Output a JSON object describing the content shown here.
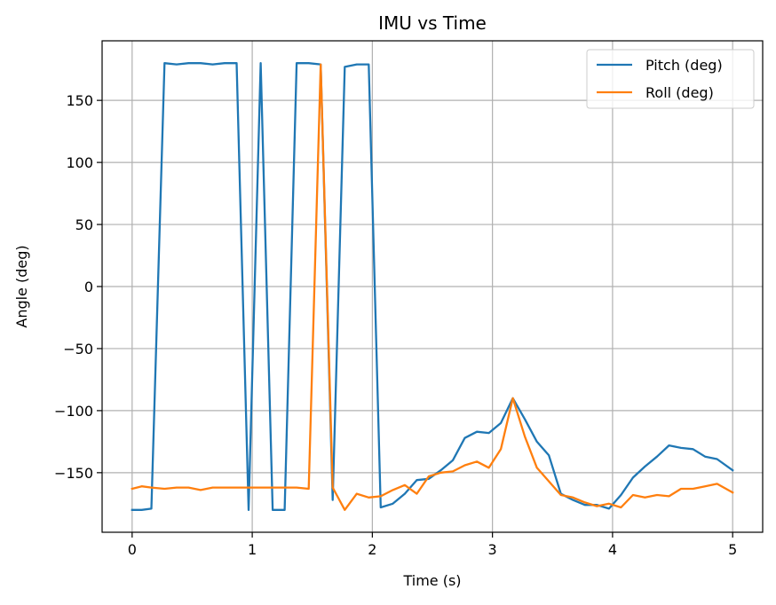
{
  "chart_data": {
    "type": "line",
    "title": "IMU vs Time",
    "xlabel": "Time (s)",
    "ylabel": "Angle (deg)",
    "xlim": [
      -0.25,
      5.25
    ],
    "ylim": [
      -198,
      198
    ],
    "xticks": [
      0,
      1,
      2,
      3,
      4,
      5
    ],
    "xtick_labels": [
      "0",
      "1",
      "2",
      "3",
      "4",
      "5"
    ],
    "yticks": [
      -150,
      -100,
      -50,
      0,
      50,
      100,
      150
    ],
    "ytick_labels": [
      "−150",
      "−100",
      "−50",
      "0",
      "50",
      "100",
      "150"
    ],
    "grid": true,
    "legend_position": "top-right",
    "series": [
      {
        "name": "Pitch (deg)",
        "color": "#1f77b4",
        "x": [
          0.0,
          0.08,
          0.16,
          0.27,
          0.37,
          0.47,
          0.57,
          0.67,
          0.77,
          0.87,
          0.97,
          1.07,
          1.17,
          1.27,
          1.37,
          1.47,
          1.57,
          1.67,
          1.77,
          1.87,
          1.97,
          2.07,
          2.17,
          2.27,
          2.37,
          2.47,
          2.57,
          2.67,
          2.77,
          2.87,
          2.97,
          3.07,
          3.17,
          3.27,
          3.37,
          3.47,
          3.57,
          3.67,
          3.77,
          3.87,
          3.97,
          4.07,
          4.17,
          4.27,
          4.37,
          4.47,
          4.57,
          4.67,
          4.77,
          4.87,
          5.0
        ],
        "y": [
          -180,
          -180,
          -179,
          180,
          179,
          180,
          180,
          179,
          180,
          180,
          -180,
          180,
          -180,
          -180,
          180,
          180,
          179,
          -172,
          177,
          179,
          179,
          -178,
          -175,
          -167,
          -156,
          -155,
          -148,
          -140,
          -122,
          -117,
          -118,
          -110,
          -90,
          -107,
          -125,
          -136,
          -167,
          -172,
          -176,
          -176,
          -179,
          -168,
          -154,
          -145,
          -137,
          -128,
          -130,
          -131,
          -137,
          -139,
          -148
        ]
      },
      {
        "name": "Roll (deg)",
        "color": "#ff7f0e",
        "x": [
          0.0,
          0.08,
          0.16,
          0.27,
          0.37,
          0.47,
          0.57,
          0.67,
          0.77,
          0.87,
          0.97,
          1.07,
          1.17,
          1.27,
          1.37,
          1.47,
          1.57,
          1.67,
          1.77,
          1.87,
          1.97,
          2.07,
          2.17,
          2.27,
          2.37,
          2.47,
          2.57,
          2.67,
          2.77,
          2.87,
          2.97,
          3.07,
          3.17,
          3.27,
          3.37,
          3.47,
          3.57,
          3.67,
          3.77,
          3.87,
          3.97,
          4.07,
          4.17,
          4.27,
          4.37,
          4.47,
          4.57,
          4.67,
          4.77,
          4.87,
          5.0
        ],
        "y": [
          -163,
          -161,
          -162,
          -163,
          -162,
          -162,
          -164,
          -162,
          -162,
          -162,
          -162,
          -162,
          -162,
          -162,
          -162,
          -163,
          179,
          -162,
          -180,
          -167,
          -170,
          -169,
          -164,
          -160,
          -167,
          -153,
          -150,
          -149,
          -144,
          -141,
          -146,
          -131,
          -90,
          -121,
          -146,
          -157,
          -168,
          -170,
          -174,
          -177,
          -175,
          -178,
          -168,
          -170,
          -168,
          -169,
          -163,
          -163,
          -161,
          -159,
          -166
        ]
      }
    ]
  }
}
